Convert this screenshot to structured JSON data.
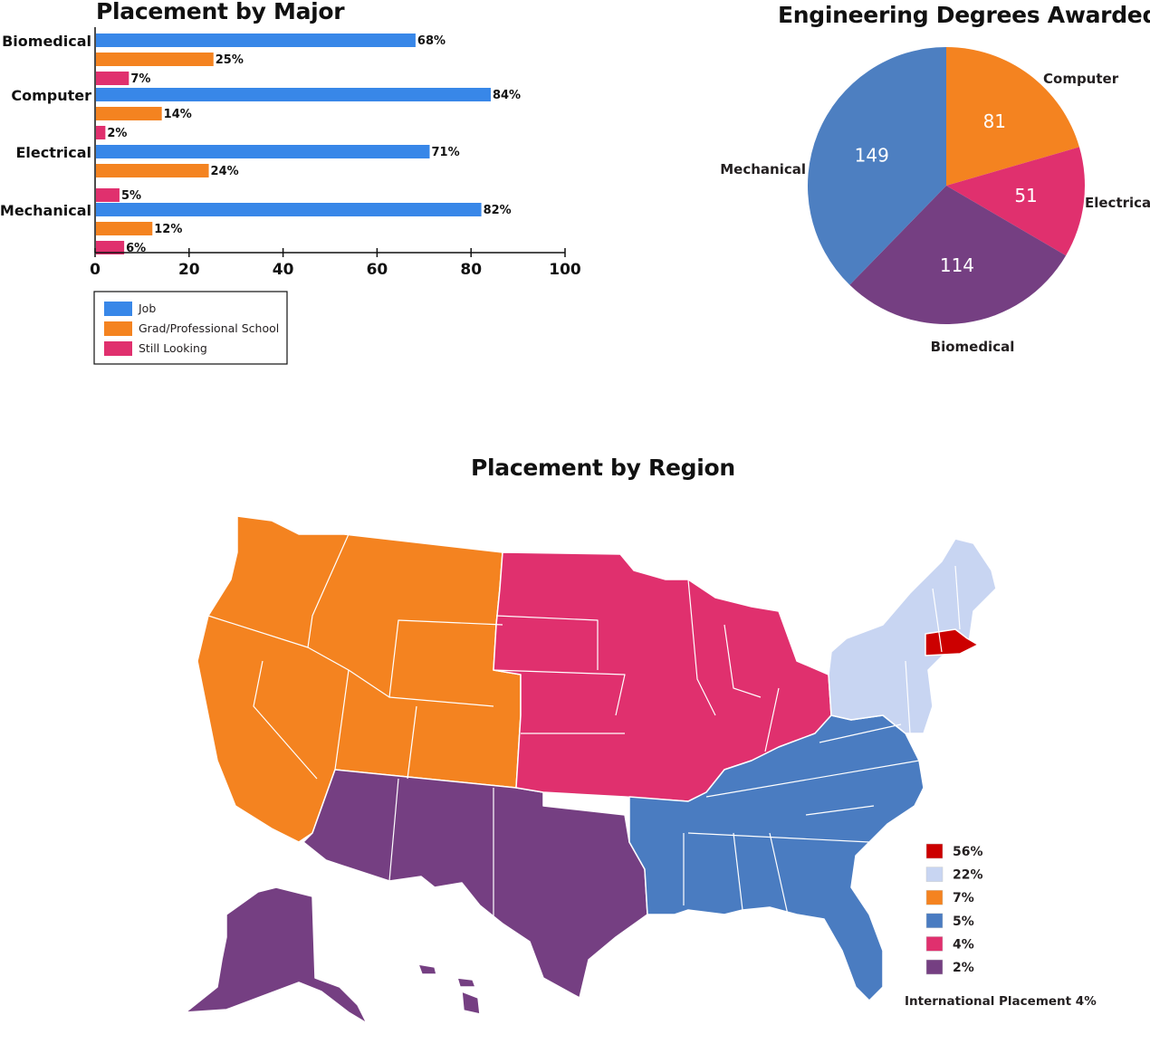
{
  "colors": {
    "job": "#3887e8",
    "grad": "#f48320",
    "looking": "#e0306e",
    "mechanical": "#4d7fc1",
    "computer": "#f48320",
    "electrical": "#e0306e",
    "biomedical": "#753f82",
    "region_56": "#cc0000",
    "region_22": "#c8d5f2",
    "region_7": "#f48320",
    "region_5": "#4a7cc1",
    "region_4": "#e0306e",
    "region_2": "#753f82"
  },
  "bar_panel": {
    "title": "Placement by Major"
  },
  "pie_panel": {
    "title": "Engineering Degrees Awarded"
  },
  "map_panel": {
    "title": "Placement by Region",
    "legend": [
      {
        "label": "56%",
        "color": "#cc0000"
      },
      {
        "label": "22%",
        "color": "#c8d5f2"
      },
      {
        "label": "7%",
        "color": "#f48320"
      },
      {
        "label": "5%",
        "color": "#4a7cc1"
      },
      {
        "label": "4%",
        "color": "#e0306e"
      },
      {
        "label": "2%",
        "color": "#753f82"
      }
    ],
    "international": "International Placement 4%"
  },
  "chart_data": [
    {
      "type": "bar",
      "orientation": "horizontal",
      "title": "Placement by Major",
      "categories": [
        "Biomedical",
        "Computer",
        "Electrical",
        "Mechanical"
      ],
      "series": [
        {
          "name": "Job",
          "values": [
            68,
            84,
            71,
            82
          ],
          "labels": [
            "68%",
            "84%",
            "71%",
            "82%"
          ]
        },
        {
          "name": "Grad/Professional School",
          "values": [
            25,
            14,
            24,
            12
          ],
          "labels": [
            "25%",
            "14%",
            "24%",
            "12%"
          ]
        },
        {
          "name": "Still Looking",
          "values": [
            7,
            2,
            5,
            6
          ],
          "labels": [
            "7%",
            "2%",
            "5%",
            "6%"
          ]
        }
      ],
      "xlim": [
        0,
        100
      ],
      "xticks": [
        "0",
        "20",
        "40",
        "60",
        "80",
        "100"
      ],
      "legend_position": "bottom-left"
    },
    {
      "type": "pie",
      "title": "Engineering Degrees Awarded",
      "slices": [
        {
          "label": "Computer",
          "value": 81
        },
        {
          "label": "Electrical",
          "value": 51
        },
        {
          "label": "Biomedical",
          "value": 114
        },
        {
          "label": "Mechanical",
          "value": 149
        }
      ]
    }
  ]
}
